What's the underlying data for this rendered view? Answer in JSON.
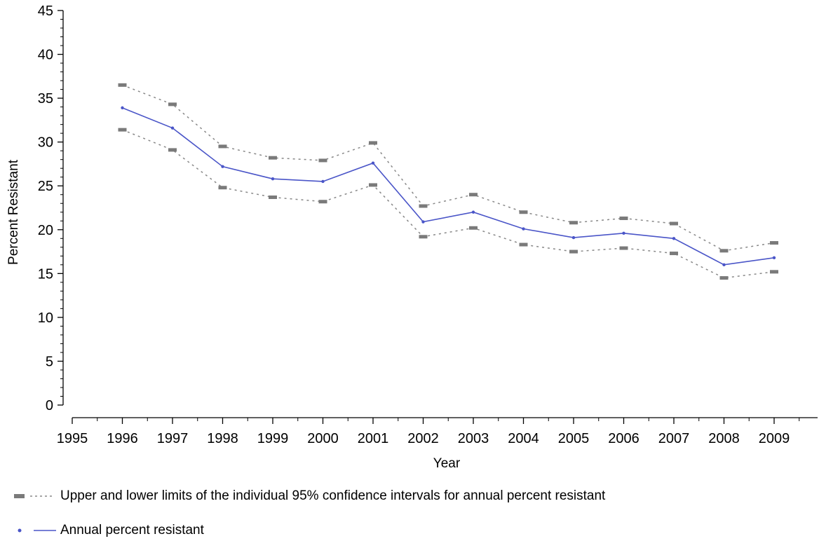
{
  "chart_data": {
    "type": "line",
    "x": [
      1996,
      1997,
      1998,
      1999,
      2000,
      2001,
      2002,
      2003,
      2004,
      2005,
      2006,
      2007,
      2008,
      2009
    ],
    "x_ticks": [
      1995,
      1996,
      1997,
      1998,
      1999,
      2000,
      2001,
      2002,
      2003,
      2004,
      2005,
      2006,
      2007,
      2008,
      2009
    ],
    "y_ticks": [
      0,
      5,
      10,
      15,
      20,
      25,
      30,
      35,
      40,
      45
    ],
    "xlabel": "Year",
    "ylabel": "Percent Resistant",
    "xlim": [
      1995,
      2010
    ],
    "ylim": [
      0,
      45
    ],
    "grid": false,
    "legend_position": "bottom",
    "series": [
      {
        "name": "Annual percent resistant",
        "style": "solid",
        "color": "#4a55c8",
        "values": [
          33.9,
          31.6,
          27.2,
          25.8,
          25.5,
          27.6,
          20.9,
          22.0,
          20.1,
          19.1,
          19.6,
          19.0,
          16.0,
          16.8
        ]
      },
      {
        "name": "Upper and lower limits of the individual 95% confidence intervals for annual percent resistant",
        "style": "dotted",
        "color": "#888888",
        "upper": [
          36.5,
          34.3,
          29.5,
          28.2,
          27.9,
          29.9,
          22.7,
          24.0,
          22.0,
          20.8,
          21.3,
          20.7,
          17.6,
          18.5
        ],
        "lower": [
          31.4,
          29.1,
          24.8,
          23.7,
          23.2,
          25.1,
          19.2,
          20.2,
          18.3,
          17.5,
          17.9,
          17.3,
          14.5,
          15.2
        ]
      }
    ]
  },
  "legend": {
    "ci_label": "Upper and lower limits of the individual 95% confidence intervals for annual percent resistant",
    "annual_label": "Annual percent resistant"
  }
}
